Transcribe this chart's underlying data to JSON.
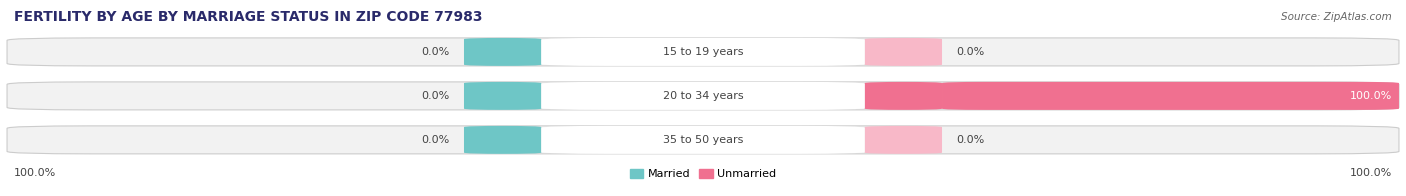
{
  "title": "FERTILITY BY AGE BY MARRIAGE STATUS IN ZIP CODE 77983",
  "source": "Source: ZipAtlas.com",
  "categories": [
    "15 to 19 years",
    "20 to 34 years",
    "35 to 50 years"
  ],
  "married_values": [
    0.0,
    0.0,
    0.0
  ],
  "unmarried_values": [
    0.0,
    100.0,
    0.0
  ],
  "married_color": "#6ec6c6",
  "unmarried_color": "#f07090",
  "married_color_light": "#aadada",
  "unmarried_color_light": "#f8b8c8",
  "bar_bg_color": "#f2f2f2",
  "bar_border_color": "#cccccc",
  "title_color": "#2a2a6a",
  "label_color": "#444444",
  "title_fontsize": 10,
  "label_fontsize": 8,
  "tick_fontsize": 8,
  "source_fontsize": 7.5,
  "legend_fontsize": 8,
  "background_color": "#ffffff"
}
